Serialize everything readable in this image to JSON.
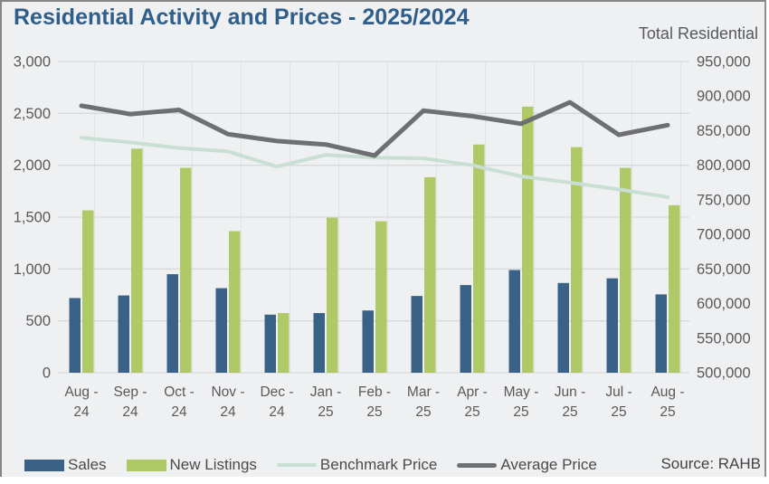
{
  "header": {
    "title": "Residential Activity and Prices - 2025/2024",
    "right_axis_title": "Total Residential"
  },
  "source": "Source: RAHB",
  "colors": {
    "background": "#EFF0F2",
    "title": "#2F5E8A",
    "axis_text": "#595959",
    "gridline_h": "#D8D9DB",
    "gridline_v": "#E2E3E5",
    "sales": "#3A6286",
    "new_listings": "#AEC965",
    "benchmark_price": "#C9DFD3",
    "average_price": "#6E6F71"
  },
  "legend": {
    "items": [
      {
        "label": "Sales",
        "type": "bar",
        "color": "#3A6286"
      },
      {
        "label": "New Listings",
        "type": "bar",
        "color": "#AEC965"
      },
      {
        "label": "Benchmark Price",
        "type": "line",
        "color": "#C9DFD3"
      },
      {
        "label": "Average Price",
        "type": "line",
        "color": "#6E6F71"
      }
    ]
  },
  "chart_data": {
    "type": "bar",
    "subtype": "grouped bars with two overlay lines, dual y-axes",
    "title": "Residential Activity and Prices - 2025/2024",
    "categories": [
      "Aug - 24",
      "Sep - 24",
      "Oct - 24",
      "Nov - 24",
      "Dec - 24",
      "Jan - 25",
      "Feb - 25",
      "Mar - 25",
      "Apr - 25",
      "May - 25",
      "Jun - 25",
      "Jul - 25",
      "Aug - 25"
    ],
    "series": [
      {
        "name": "Sales",
        "type": "bar",
        "axis": "left",
        "color": "#3A6286",
        "values": [
          720,
          745,
          950,
          815,
          560,
          575,
          600,
          740,
          845,
          990,
          865,
          910,
          755
        ]
      },
      {
        "name": "New Listings",
        "type": "bar",
        "axis": "left",
        "color": "#AEC965",
        "values": [
          1565,
          2160,
          1975,
          1365,
          575,
          1495,
          1460,
          1885,
          2200,
          2565,
          2175,
          1975,
          1615
        ]
      },
      {
        "name": "Benchmark Price",
        "type": "line",
        "axis": "right",
        "color": "#C9DFD3",
        "values": [
          840000,
          833000,
          825000,
          820000,
          798000,
          815000,
          811000,
          810000,
          800000,
          784000,
          775000,
          765000,
          754000
        ]
      },
      {
        "name": "Average Price",
        "type": "line",
        "axis": "right",
        "color": "#6E6F71",
        "values": [
          886000,
          874000,
          880000,
          845000,
          835000,
          830000,
          814000,
          879000,
          871000,
          860000,
          891000,
          844000,
          858000
        ]
      }
    ],
    "left_axis": {
      "min": 0,
      "max": 3000,
      "tick_labels_top_down": [
        "3,000",
        "2,500",
        "2,000",
        "1,500",
        "1,000",
        "500",
        "0"
      ]
    },
    "right_axis": {
      "min": 500000,
      "max": 950000,
      "title": "Total Residential",
      "tick_labels_top_down": [
        "950,000",
        "900,000",
        "850,000",
        "800,000",
        "750,000",
        "700,000",
        "650,000",
        "600,000",
        "550,000",
        "500,000"
      ]
    },
    "grid": true,
    "legend_position": "bottom"
  }
}
